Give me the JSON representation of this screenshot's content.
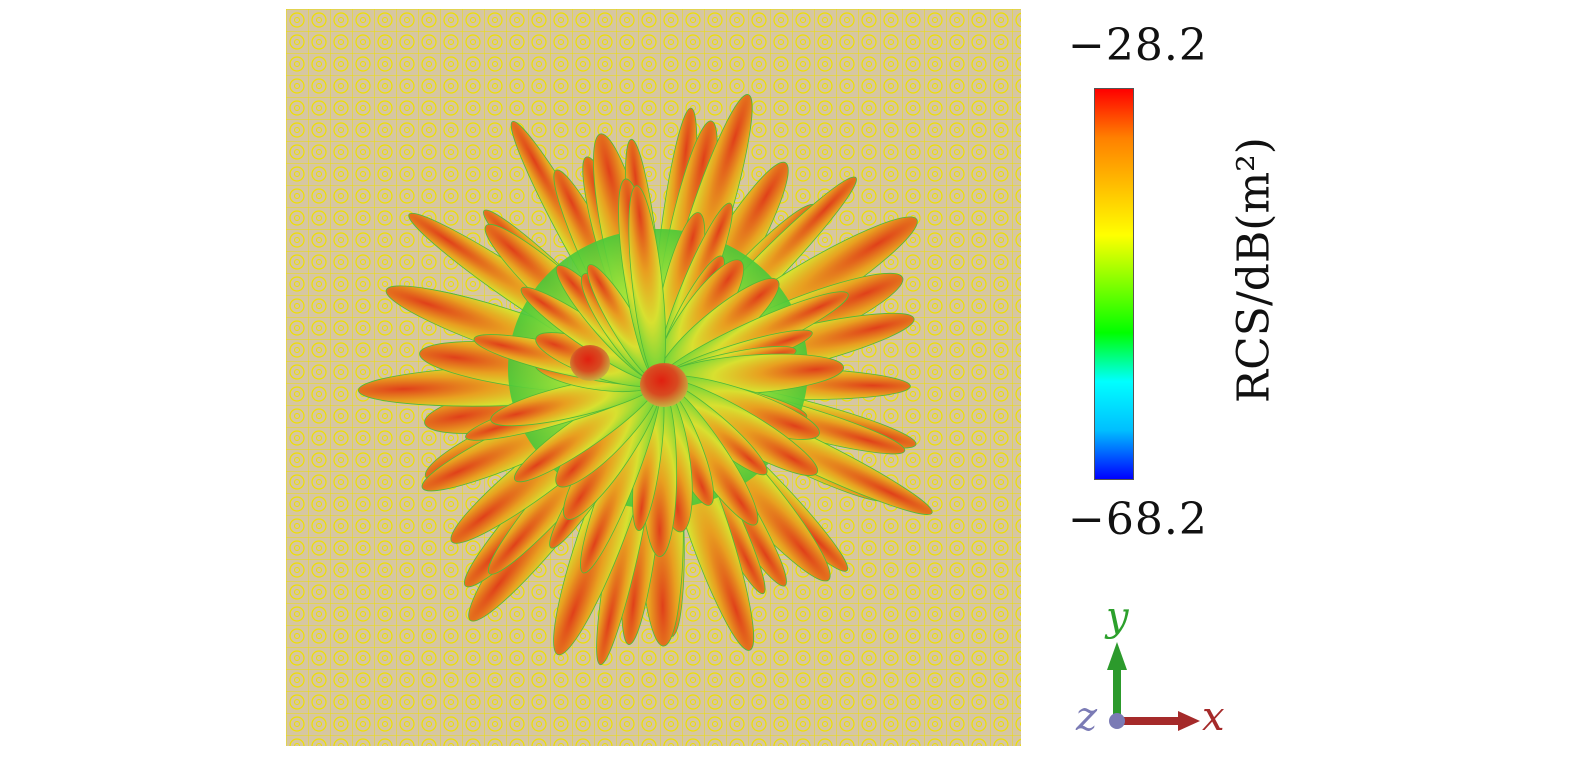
{
  "colorbar": {
    "max_label": "−28.2",
    "min_label": "−68.2",
    "title": "RCS/dB(m²)",
    "max_value": -28.2,
    "min_value": -68.2,
    "colormap": [
      "#0000ff",
      "#00bfff",
      "#00ffff",
      "#00ff00",
      "#80ff00",
      "#ffff00",
      "#ffbf00",
      "#ff8000",
      "#ff0000"
    ]
  },
  "axes": {
    "x_label": "x",
    "y_label": "y",
    "z_label": "z",
    "x_color": "#a52a2a",
    "y_color": "#2ca02c",
    "z_color": "#7b7bb5"
  },
  "surface": {
    "background_color": "#d9c8a0",
    "grid_color": "#f0e000"
  }
}
